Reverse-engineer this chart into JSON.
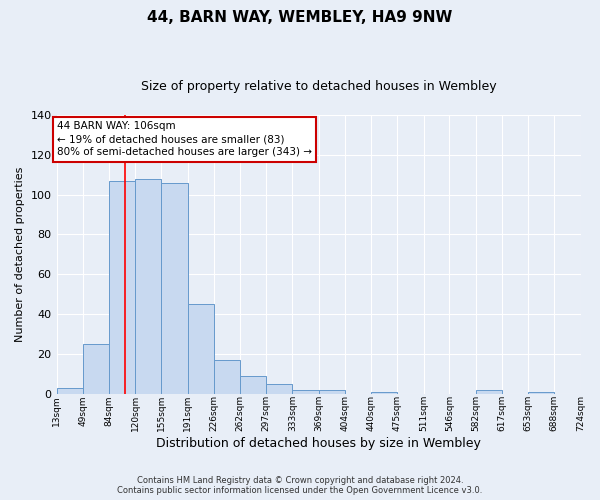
{
  "title": "44, BARN WAY, WEMBLEY, HA9 9NW",
  "subtitle": "Size of property relative to detached houses in Wembley",
  "xlabel": "Distribution of detached houses by size in Wembley",
  "ylabel": "Number of detached properties",
  "bin_edges": [
    13,
    49,
    84,
    120,
    155,
    191,
    226,
    262,
    297,
    333,
    369,
    404,
    440,
    475,
    511,
    546,
    582,
    617,
    653,
    688,
    724
  ],
  "bar_heights": [
    3,
    25,
    107,
    108,
    106,
    45,
    17,
    9,
    5,
    2,
    2,
    0,
    1,
    0,
    0,
    0,
    2,
    0,
    1,
    0
  ],
  "bar_color": "#c8d9f0",
  "bar_edge_color": "#6699cc",
  "ylim": [
    0,
    140
  ],
  "yticks": [
    0,
    20,
    40,
    60,
    80,
    100,
    120,
    140
  ],
  "red_line_x": 106,
  "annotation_text": "44 BARN WAY: 106sqm\n← 19% of detached houses are smaller (83)\n80% of semi-detached houses are larger (343) →",
  "annotation_box_color": "#ffffff",
  "annotation_box_edge": "#cc0000",
  "footer_line1": "Contains HM Land Registry data © Crown copyright and database right 2024.",
  "footer_line2": "Contains public sector information licensed under the Open Government Licence v3.0.",
  "background_color": "#e8eef7",
  "plot_background": "#e8eef7",
  "grid_color": "#ffffff",
  "title_fontsize": 11,
  "subtitle_fontsize": 9,
  "ylabel_fontsize": 8,
  "xlabel_fontsize": 9,
  "tick_label_fontsize": 6.5,
  "footer_fontsize": 6,
  "annotation_fontsize": 7.5
}
